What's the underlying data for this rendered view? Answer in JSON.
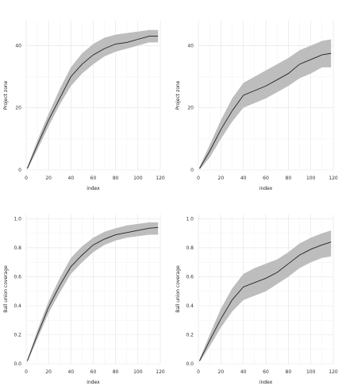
{
  "chart_data": [
    {
      "type": "area",
      "xlabel": "index",
      "ylabel": "Project zone",
      "xlim": [
        0,
        120
      ],
      "ylim": [
        0,
        48
      ],
      "xticks": [
        0,
        20,
        40,
        60,
        80,
        100,
        120
      ],
      "yticks": [
        0,
        20,
        40
      ],
      "grid": true,
      "x": [
        1,
        10,
        20,
        30,
        40,
        50,
        60,
        70,
        80,
        90,
        100,
        110,
        118
      ],
      "series": [
        {
          "role": "mean",
          "color": "#222222",
          "values": [
            0.5,
            8,
            16,
            23,
            30,
            34,
            37,
            39,
            40.5,
            41,
            42,
            43,
            43
          ]
        },
        {
          "role": "lower",
          "color": "#bdbdbd",
          "values": [
            0,
            6.5,
            14,
            21,
            27,
            31,
            34,
            36.5,
            38,
            39,
            40,
            41,
            41
          ]
        },
        {
          "role": "upper",
          "color": "#bdbdbd",
          "values": [
            1,
            9.5,
            18,
            26,
            33,
            37.5,
            40.5,
            42.5,
            43.5,
            44,
            44.5,
            45,
            45
          ]
        }
      ]
    },
    {
      "type": "area",
      "xlabel": "index",
      "ylabel": "Project zone",
      "xlim": [
        0,
        120
      ],
      "ylim": [
        0,
        48
      ],
      "xticks": [
        0,
        20,
        40,
        60,
        80,
        100,
        120
      ],
      "yticks": [
        0,
        20,
        40
      ],
      "grid": true,
      "x": [
        1,
        10,
        20,
        30,
        40,
        50,
        60,
        70,
        80,
        90,
        100,
        110,
        118
      ],
      "series": [
        {
          "role": "mean",
          "color": "#222222",
          "values": [
            0.5,
            6,
            13,
            19,
            24,
            25.5,
            27,
            29,
            31,
            34,
            35.5,
            37,
            37.5
          ]
        },
        {
          "role": "lower",
          "color": "#bdbdbd",
          "values": [
            0,
            4,
            10,
            15.5,
            20,
            21.5,
            23,
            25,
            27,
            29.5,
            31,
            33,
            33
          ]
        },
        {
          "role": "upper",
          "color": "#bdbdbd",
          "values": [
            1,
            8,
            16,
            23,
            28,
            30,
            32,
            34,
            36,
            38.5,
            40,
            41.5,
            42
          ]
        }
      ]
    },
    {
      "type": "area",
      "xlabel": "index",
      "ylabel": "Ball union coverage",
      "xlim": [
        0,
        120
      ],
      "ylim": [
        0,
        1.03
      ],
      "xticks": [
        0,
        20,
        40,
        60,
        80,
        100,
        120
      ],
      "yticks": [
        0.0,
        0.2,
        0.4,
        0.6,
        0.8,
        1.0
      ],
      "ytick_labels": [
        "0.0",
        "0.2",
        "0.4",
        "0.6",
        "0.8",
        "1.0"
      ],
      "grid": true,
      "x": [
        1,
        10,
        20,
        30,
        40,
        50,
        60,
        70,
        80,
        90,
        100,
        110,
        118
      ],
      "series": [
        {
          "role": "mean",
          "color": "#222222",
          "values": [
            0.02,
            0.2,
            0.39,
            0.54,
            0.67,
            0.75,
            0.82,
            0.86,
            0.89,
            0.905,
            0.92,
            0.935,
            0.94
          ]
        },
        {
          "role": "lower",
          "color": "#bdbdbd",
          "values": [
            0.01,
            0.17,
            0.35,
            0.49,
            0.62,
            0.7,
            0.77,
            0.82,
            0.85,
            0.87,
            0.88,
            0.89,
            0.89
          ]
        },
        {
          "role": "upper",
          "color": "#bdbdbd",
          "values": [
            0.03,
            0.23,
            0.43,
            0.59,
            0.73,
            0.81,
            0.87,
            0.91,
            0.935,
            0.955,
            0.965,
            0.975,
            0.975
          ]
        }
      ]
    },
    {
      "type": "area",
      "xlabel": "index",
      "ylabel": "Ball union coverage",
      "xlim": [
        0,
        120
      ],
      "ylim": [
        0,
        1.03
      ],
      "xticks": [
        0,
        20,
        40,
        60,
        80,
        100,
        120
      ],
      "yticks": [
        0.0,
        0.2,
        0.4,
        0.6,
        0.8,
        1.0
      ],
      "ytick_labels": [
        "0.0",
        "0.2",
        "0.4",
        "0.6",
        "0.8",
        "1.0"
      ],
      "grid": true,
      "x": [
        1,
        10,
        20,
        30,
        40,
        50,
        60,
        70,
        80,
        90,
        100,
        110,
        118
      ],
      "series": [
        {
          "role": "mean",
          "color": "#222222",
          "values": [
            0.02,
            0.16,
            0.31,
            0.44,
            0.53,
            0.56,
            0.59,
            0.63,
            0.69,
            0.75,
            0.79,
            0.82,
            0.84
          ]
        },
        {
          "role": "lower",
          "color": "#bdbdbd",
          "values": [
            0.01,
            0.12,
            0.25,
            0.36,
            0.44,
            0.47,
            0.5,
            0.55,
            0.6,
            0.66,
            0.7,
            0.73,
            0.74
          ]
        },
        {
          "role": "upper",
          "color": "#bdbdbd",
          "values": [
            0.03,
            0.2,
            0.38,
            0.52,
            0.62,
            0.66,
            0.69,
            0.72,
            0.77,
            0.83,
            0.87,
            0.9,
            0.92
          ]
        }
      ]
    }
  ]
}
